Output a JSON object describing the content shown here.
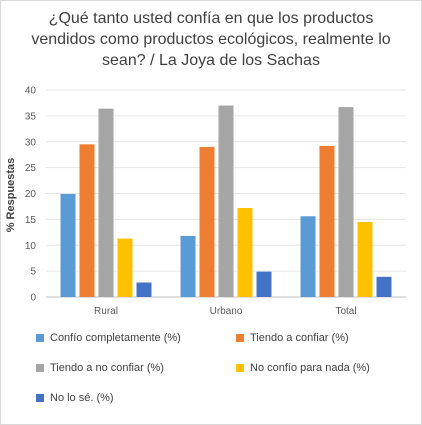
{
  "chart_data": {
    "type": "bar",
    "title": "¿Qué tanto usted confía en que los productos vendidos como productos ecológicos, realmente lo sean? / La Joya de los Sachas",
    "ylabel": "% Respuestas",
    "xlabel": "",
    "ylim": [
      0,
      40
    ],
    "yticks": [
      "0",
      "5",
      "10",
      "15",
      "20",
      "25",
      "30",
      "35",
      "40"
    ],
    "grid": true,
    "legend_position": "bottom",
    "categories": [
      "Rural",
      "Urbano",
      "Total"
    ],
    "series": [
      {
        "name": "Confío completamente (%)",
        "color": "#5b9bd5",
        "values": [
          19.9,
          11.8,
          15.6
        ]
      },
      {
        "name": "Tiendo a confiar (%)",
        "color": "#ed7d31",
        "values": [
          29.5,
          29.0,
          29.2
        ]
      },
      {
        "name": "Tiendo a no confiar (%)",
        "color": "#a5a5a5",
        "values": [
          36.4,
          37.0,
          36.7
        ]
      },
      {
        "name": "No confío para nada (%)",
        "color": "#ffc000",
        "values": [
          11.3,
          17.2,
          14.5
        ]
      },
      {
        "name": "No lo sé. (%)",
        "color": "#4472c4",
        "values": [
          2.8,
          4.9,
          3.9
        ]
      }
    ]
  }
}
